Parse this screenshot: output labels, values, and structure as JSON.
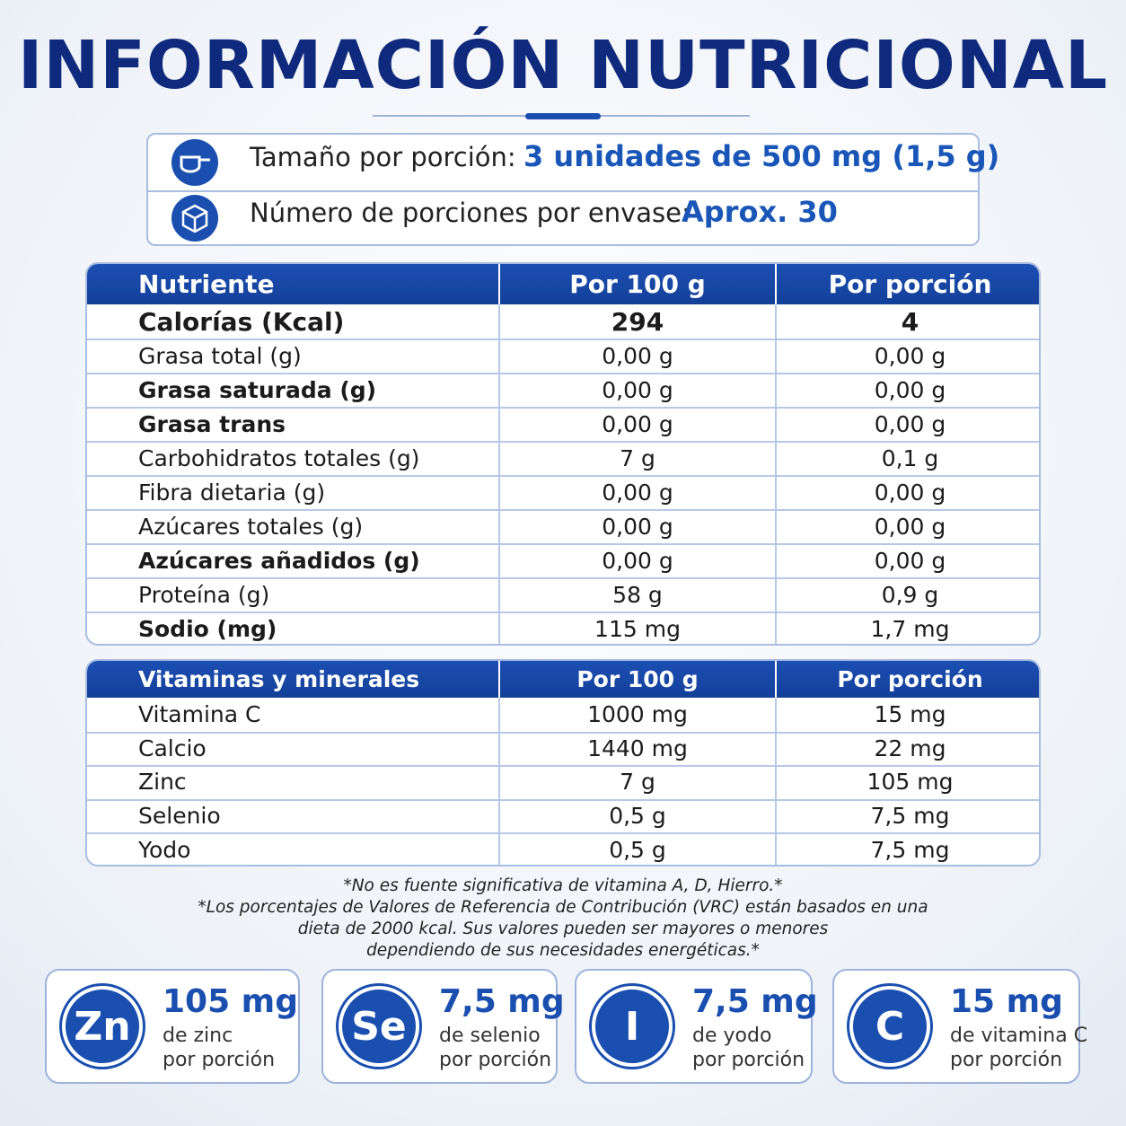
{
  "title": "INFORMACIÓN NUTRICIONAL",
  "serving": [
    {
      "label": "Tamaño por porción:",
      "value": "3 unidades de 500 mg (1,5 g)"
    },
    {
      "label": "Número de porciones por envase:",
      "value": "Aprox. 30"
    }
  ],
  "nutrients": {
    "header": [
      "Nutriente",
      "Por 100 g",
      "Por porción"
    ],
    "rows": [
      {
        "cells": [
          "Calorías (Kcal)",
          "294",
          "4"
        ],
        "bold": true
      },
      {
        "cells": [
          "Grasa total (g)",
          "0,00 g",
          "0,00 g"
        ],
        "bold": false
      },
      {
        "cells": [
          "Grasa saturada (g)",
          "0,00 g",
          "0,00 g"
        ],
        "bold": true
      },
      {
        "cells": [
          "Grasa trans",
          "0,00 g",
          "0,00 g"
        ],
        "bold": true
      },
      {
        "cells": [
          "Carbohidratos totales (g)",
          "7 g",
          "0,1 g"
        ],
        "bold": false
      },
      {
        "cells": [
          "Fibra dietaria (g)",
          "0,00 g",
          "0,00 g"
        ],
        "bold": false
      },
      {
        "cells": [
          "Azúcares totales (g)",
          "0,00 g",
          "0,00 g"
        ],
        "bold": false
      },
      {
        "cells": [
          "Azúcares añadidos (g)",
          "0,00 g",
          "0,00 g"
        ],
        "bold": true
      },
      {
        "cells": [
          "Proteína (g)",
          "58 g",
          "0,9 g"
        ],
        "bold": false
      },
      {
        "cells": [
          "Sodio (mg)",
          "115 mg",
          "1,7 mg"
        ],
        "bold": true
      }
    ]
  },
  "vitamins": {
    "header": [
      "Vitaminas y minerales",
      "Por 100 g",
      "Por porción"
    ],
    "rows": [
      {
        "cells": [
          "Vitamina C",
          "1000 mg",
          "15 mg"
        ],
        "bold": false
      },
      {
        "cells": [
          "Calcio",
          "1440 mg",
          "22 mg"
        ],
        "bold": false
      },
      {
        "cells": [
          "Zinc",
          "7 g",
          "105 mg"
        ],
        "bold": false
      },
      {
        "cells": [
          "Selenio",
          "0,5 g",
          "7,5 mg"
        ],
        "bold": false
      },
      {
        "cells": [
          "Yodo",
          "0,5 g",
          "7,5 mg"
        ],
        "bold": false
      }
    ]
  },
  "footnotes": [
    "*No es fuente significativa de vitamina A, D, Hierro.*",
    "*Los porcentajes de Valores de Referencia de Contribución (VRC) están basados en una",
    "dieta de 2000 kcal. Sus valores pueden ser mayores o menores",
    "dependiendo de sus necesidades energéticas.*"
  ],
  "badges": [
    {
      "symbol": "Zn",
      "amount": "105 mg",
      "line1": "de zinc",
      "line2": "por porción"
    },
    {
      "symbol": "Se",
      "amount": "7,5 mg",
      "line1": "de selenio",
      "line2": "por porción"
    },
    {
      "symbol": "I",
      "amount": "7,5 mg",
      "line1": "de yodo",
      "line2": "por porción"
    },
    {
      "symbol": "C",
      "amount": "15 mg",
      "line1": "de vitamina C",
      "line2": "por porción"
    }
  ]
}
